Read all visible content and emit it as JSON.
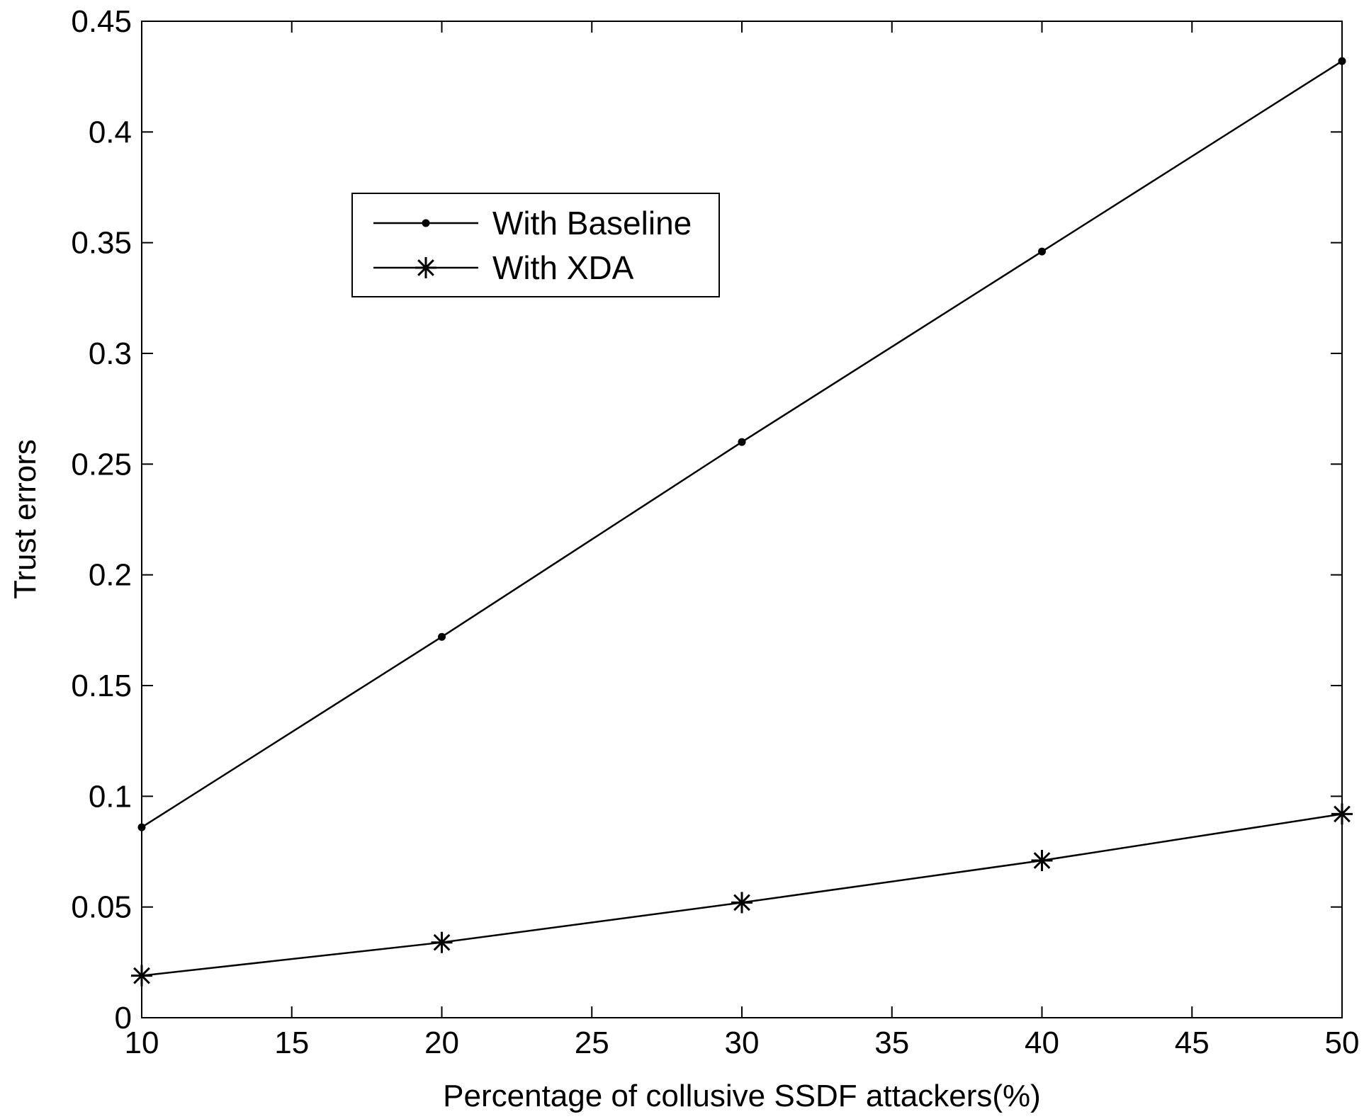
{
  "chart_data": {
    "type": "line",
    "title": "",
    "xlabel": "Percentage of collusive SSDF attackers(%)",
    "ylabel": "Trust errors",
    "xlim": [
      10,
      50
    ],
    "ylim": [
      0,
      0.45
    ],
    "xticks": [
      "10",
      "15",
      "20",
      "25",
      "30",
      "35",
      "40",
      "45",
      "50"
    ],
    "yticks": [
      "0",
      "0.05",
      "0.1",
      "0.15",
      "0.2",
      "0.25",
      "0.3",
      "0.35",
      "0.4",
      "0.45"
    ],
    "grid": false,
    "legend_position": "upper-left",
    "x": [
      10,
      20,
      30,
      40,
      50
    ],
    "series": [
      {
        "name": "With Baseline",
        "marker": "dot",
        "color": "#000000",
        "values": [
          0.086,
          0.172,
          0.26,
          0.346,
          0.432
        ]
      },
      {
        "name": "With XDA",
        "marker": "asterisk",
        "color": "#000000",
        "values": [
          0.019,
          0.034,
          0.052,
          0.071,
          0.092
        ]
      }
    ]
  }
}
